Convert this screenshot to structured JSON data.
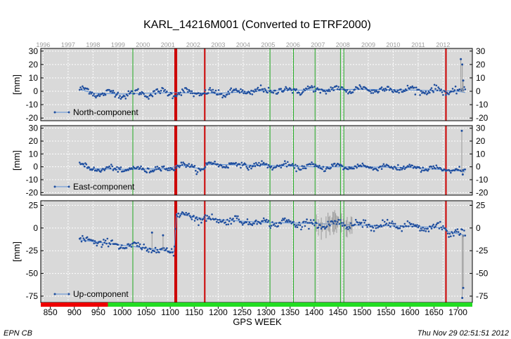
{
  "chart_data": {
    "type": "scatter",
    "title": "KARL_14216M001 (Converted to ETRF2000)",
    "xlabel": "GPS WEEK",
    "xlim": [
      830,
      1730
    ],
    "x_ticks": [
      850,
      900,
      950,
      1000,
      1050,
      1100,
      1150,
      1200,
      1250,
      1300,
      1350,
      1400,
      1450,
      1500,
      1550,
      1600,
      1650,
      1700
    ],
    "years": [
      {
        "label": "1996",
        "week": 835
      },
      {
        "label": "1997",
        "week": 887
      },
      {
        "label": "1998",
        "week": 939
      },
      {
        "label": "1999",
        "week": 991
      },
      {
        "label": "2000",
        "week": 1043
      },
      {
        "label": "2001",
        "week": 1095
      },
      {
        "label": "2002",
        "week": 1148
      },
      {
        "label": "2003",
        "week": 1200
      },
      {
        "label": "2004",
        "week": 1252
      },
      {
        "label": "2005",
        "week": 1304
      },
      {
        "label": "2006",
        "week": 1356
      },
      {
        "label": "2007",
        "week": 1408
      },
      {
        "label": "2008",
        "week": 1460
      },
      {
        "label": "2009",
        "week": 1513
      },
      {
        "label": "2010",
        "week": 1565
      },
      {
        "label": "2011",
        "week": 1617
      },
      {
        "label": "2012",
        "week": 1669
      }
    ],
    "red_lines": [
      1110,
      1113,
      1172,
      1675
    ],
    "green_lines": [
      1022,
      1308,
      1357,
      1402,
      1455,
      1462
    ],
    "availability_bar": [
      {
        "from": 830,
        "to": 970,
        "color": "#ee0000"
      },
      {
        "from": 970,
        "to": 1730,
        "color": "#22dd22"
      }
    ],
    "grid": true,
    "panels": [
      {
        "name": "North-component",
        "ylabel": "[mm]",
        "ylim": [
          -22,
          32
        ],
        "yticks": [
          -20,
          -10,
          0,
          10,
          20,
          30
        ],
        "data_start": 911,
        "data_end": 1715,
        "trend": [
          {
            "x": 911,
            "y": 1.5
          },
          {
            "x": 940,
            "y": -1.5
          },
          {
            "x": 1000,
            "y": -2.0
          },
          {
            "x": 1100,
            "y": -1.0
          },
          {
            "x": 1200,
            "y": -1.5
          },
          {
            "x": 1300,
            "y": 0.5
          },
          {
            "x": 1400,
            "y": 1.0
          },
          {
            "x": 1500,
            "y": 1.5
          },
          {
            "x": 1600,
            "y": 1.0
          },
          {
            "x": 1700,
            "y": 0.0
          },
          {
            "x": 1715,
            "y": -1.0
          }
        ],
        "seasonal_amplitude": 1.8,
        "noise": 1.2,
        "error_bars": 0,
        "outliers": [
          {
            "x": 1706,
            "y": 24
          },
          {
            "x": 1709,
            "y": 20
          },
          {
            "x": 1711,
            "y": 8
          }
        ]
      },
      {
        "name": "East-component",
        "ylabel": "[mm]",
        "ylim": [
          -22,
          32
        ],
        "yticks": [
          -20,
          -10,
          0,
          10,
          20,
          30
        ],
        "data_start": 911,
        "data_end": 1715,
        "trend": [
          {
            "x": 911,
            "y": 3.0
          },
          {
            "x": 930,
            "y": -1.5
          },
          {
            "x": 1000,
            "y": -2.0
          },
          {
            "x": 1100,
            "y": -1.5
          },
          {
            "x": 1115,
            "y": 1.5
          },
          {
            "x": 1172,
            "y": -2.0
          },
          {
            "x": 1175,
            "y": 2.0
          },
          {
            "x": 1300,
            "y": 1.0
          },
          {
            "x": 1400,
            "y": 0.0
          },
          {
            "x": 1500,
            "y": 0.0
          },
          {
            "x": 1600,
            "y": -0.5
          },
          {
            "x": 1700,
            "y": -3.0
          },
          {
            "x": 1715,
            "y": -4.0
          }
        ],
        "seasonal_amplitude": 1.5,
        "noise": 1.0,
        "error_bars": 0,
        "outliers": [
          {
            "x": 1708,
            "y": 28
          },
          {
            "x": 1710,
            "y": -6
          }
        ]
      },
      {
        "name": "Up-component",
        "ylabel": "[mm]",
        "ylim": [
          -82,
          30
        ],
        "yticks": [
          -75,
          -50,
          -25,
          0,
          25
        ],
        "data_start": 911,
        "data_end": 1715,
        "trend": [
          {
            "x": 911,
            "y": -13
          },
          {
            "x": 1000,
            "y": -19
          },
          {
            "x": 1108,
            "y": -26
          },
          {
            "x": 1113,
            "y": 16
          },
          {
            "x": 1172,
            "y": 10
          },
          {
            "x": 1300,
            "y": 6
          },
          {
            "x": 1400,
            "y": 5
          },
          {
            "x": 1500,
            "y": 3
          },
          {
            "x": 1600,
            "y": 2
          },
          {
            "x": 1675,
            "y": 0
          },
          {
            "x": 1678,
            "y": -4
          },
          {
            "x": 1715,
            "y": -8
          }
        ],
        "seasonal_amplitude": 2.5,
        "noise": 2.0,
        "error_bars": 1,
        "error_bar_range": [
          1400,
          1480
        ],
        "outliers": [
          {
            "x": 1709,
            "y": -77
          },
          {
            "x": 1711,
            "y": -66
          },
          {
            "x": 1062,
            "y": -5
          },
          {
            "x": 1085,
            "y": -8
          }
        ]
      }
    ]
  },
  "footer": {
    "left": "EPN CB",
    "right": "Thu Nov 29 02:51:51 2012"
  },
  "colors": {
    "plot_bg": "#d9d9d9",
    "marker": "#1f4e9e",
    "trend": "#5a8fd6",
    "error_bar": "#9a9a9a",
    "red_line": "#cc0000",
    "green_line": "#22aa22",
    "grid": "#ffffff"
  }
}
